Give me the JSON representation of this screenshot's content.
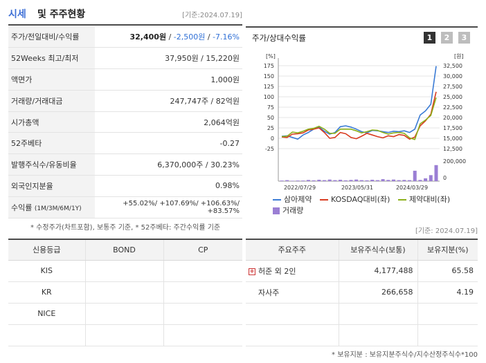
{
  "header": {
    "title_prefix": "시세",
    "title_rest": "및 주주현황",
    "date": "[기준:2024.07.19]"
  },
  "quote_table": [
    {
      "key": "주가/전일대비/수익률",
      "price": "32,400원",
      "sep1": " / ",
      "change": "-2,500원",
      "sep2": " / ",
      "rate": "-7.16%"
    },
    {
      "key": "52Weeks 최고/최저",
      "value": "37,950원 / 15,220원"
    },
    {
      "key": "액면가",
      "value": "1,000원"
    },
    {
      "key": "거래량/거래대금",
      "value": "247,747주 / 82억원"
    },
    {
      "key": "시가총액",
      "value": "2,064억원"
    },
    {
      "key": "52주베타",
      "value": "-0.27"
    },
    {
      "key": "발행주식수/유동비율",
      "value": "6,370,000주 / 30.23%"
    },
    {
      "key": "외국인지분율",
      "value": "0.98%"
    },
    {
      "key": "수익률",
      "key_sub": "(1M/3M/6M/1Y)",
      "value": "+55.02%/ +107.69%/ +106.63%/ +83.57%"
    }
  ],
  "note1": "* 수정주가(차트포함), 보통주 기준, * 52주베타: 주간수익률 기준",
  "chart_panel": {
    "title": "주가/상대수익률",
    "pages": [
      "1",
      "2",
      "3"
    ]
  },
  "chart_data": {
    "type": "line",
    "y_left_unit": "[%]",
    "y_right_unit": "[원]",
    "y_left_ticks": [
      "175",
      "150",
      "125",
      "100",
      "75",
      "50",
      "25",
      "0",
      "-25"
    ],
    "y_right_ticks": [
      "32,500",
      "30,000",
      "27,500",
      "25,000",
      "22,500",
      "20,000",
      "17,500",
      "15,000",
      "12,500"
    ],
    "vol_ticks": [
      "200,000",
      "0"
    ],
    "x_ticks": [
      "2022/07/29",
      "2023/05/31",
      "2024/03/29"
    ],
    "ylim_left": [
      -25,
      175
    ],
    "series": [
      {
        "name": "삼아제약",
        "color": "#3a7bd5",
        "values": [
          5,
          6,
          2,
          -2,
          8,
          14,
          22,
          27,
          17,
          10,
          14,
          28,
          30,
          27,
          22,
          16,
          13,
          19,
          18,
          16,
          14,
          17,
          16,
          18,
          14,
          22,
          56,
          66,
          82,
          174
        ]
      },
      {
        "name": "KOSDAQ대비(좌)",
        "color": "#d83a1f",
        "values": [
          3,
          2,
          10,
          11,
          13,
          20,
          22,
          25,
          14,
          0,
          2,
          14,
          11,
          2,
          -1,
          5,
          12,
          8,
          4,
          1,
          6,
          4,
          9,
          7,
          -2,
          3,
          30,
          42,
          58,
          112
        ]
      },
      {
        "name": "제약대비(좌)",
        "color": "#8cb01a",
        "values": [
          4,
          5,
          15,
          13,
          17,
          22,
          24,
          29,
          22,
          12,
          12,
          22,
          22,
          22,
          18,
          13,
          16,
          20,
          19,
          14,
          10,
          13,
          14,
          12,
          1,
          -3,
          35,
          44,
          55,
          98
        ]
      }
    ],
    "volume": {
      "name": "거래량",
      "color": "#9b7fd4",
      "values": [
        0.03,
        0.05,
        0.02,
        0.03,
        0.03,
        0.06,
        0.04,
        0.07,
        0.05,
        0.08,
        0.05,
        0.07,
        0.04,
        0.06,
        0.08,
        0.05,
        0.04,
        0.07,
        0.05,
        0.1,
        0.06,
        0.08,
        0.05,
        0.06,
        0.05,
        0.52,
        0.06,
        0.14,
        0.3,
        0.8
      ]
    }
  },
  "date2": "[기준: 2024.07.19]",
  "credit_table": {
    "headers": [
      "신용등급",
      "BOND",
      "CP"
    ],
    "rows": [
      [
        "KIS",
        "",
        ""
      ],
      [
        "KR",
        "",
        ""
      ],
      [
        "NICE",
        "",
        ""
      ],
      [
        "",
        "",
        ""
      ]
    ]
  },
  "holder_table": {
    "headers": [
      "주요주주",
      "보유주식수(보통)",
      "보유지분(%)"
    ],
    "rows": [
      {
        "name": "허준 외 2인",
        "shares": "4,177,488",
        "pct": "65.58",
        "expandable": true
      },
      {
        "name": "자사주",
        "shares": "266,658",
        "pct": "4.19",
        "expandable": false
      },
      {
        "name": "",
        "shares": "",
        "pct": "",
        "expandable": false
      },
      {
        "name": "",
        "shares": "",
        "pct": "",
        "expandable": false
      }
    ]
  },
  "note2": "* 보유지분 : 보유지분주식수/지수산정주식수*100"
}
